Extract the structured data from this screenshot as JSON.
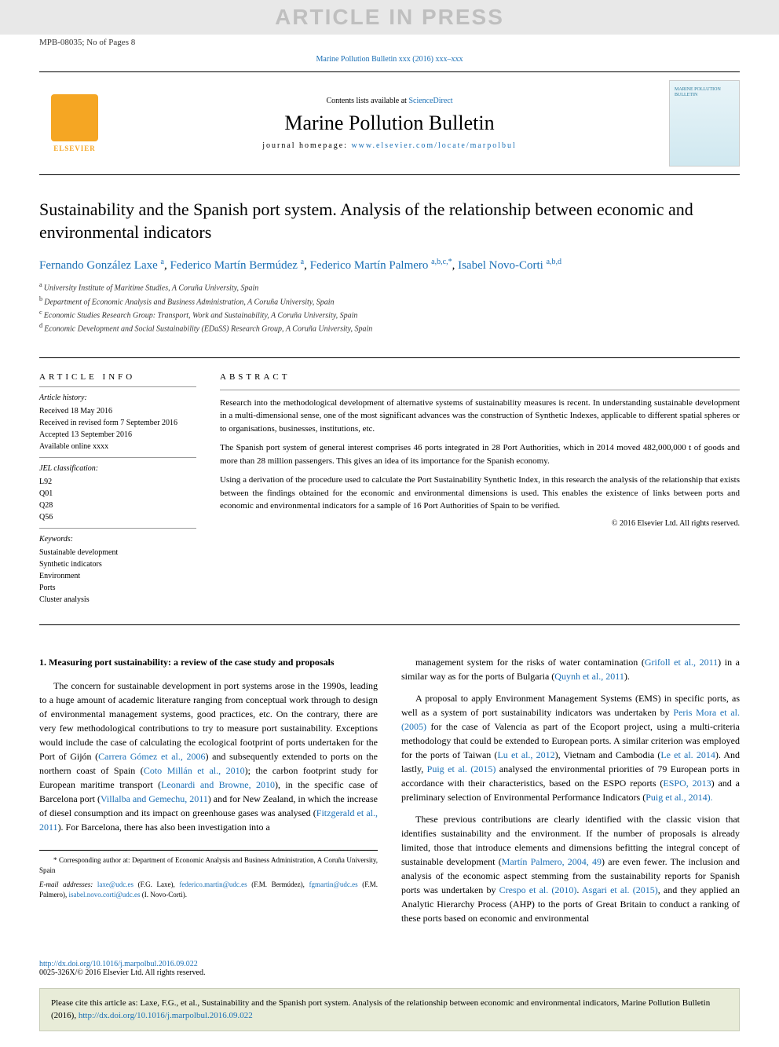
{
  "colors": {
    "link": "#1a6fb5",
    "watermark_bg": "#e8e8e8",
    "watermark_fg": "#bfbfbf",
    "elsevier_orange": "#f5a623",
    "citation_bg": "#e8ecd8",
    "citation_border": "#c8ccb8",
    "text": "#000000"
  },
  "typography": {
    "body_font": "Georgia, 'Times New Roman', serif",
    "title_fontsize": 22,
    "journal_title_fontsize": 26,
    "body_fontsize": 12,
    "abstract_fontsize": 11,
    "info_fontsize": 10
  },
  "watermark": "ARTICLE IN PRESS",
  "article_id": "MPB-08035; No of Pages 8",
  "journal_ref": "Marine Pollution Bulletin xxx (2016) xxx–xxx",
  "masthead": {
    "contents_line_prefix": "Contents lists available at ",
    "contents_link": "ScienceDirect",
    "journal_title": "Marine Pollution Bulletin",
    "homepage_prefix": "journal homepage: ",
    "homepage_url": "www.elsevier.com/locate/marpolbul",
    "publisher_label": "ELSEVIER",
    "cover_title": "MARINE POLLUTION BULLETIN"
  },
  "title": "Sustainability and the Spanish port system. Analysis of the relationship between economic and environmental indicators",
  "authors": [
    {
      "name": "Fernando González Laxe",
      "aff": "a"
    },
    {
      "name": "Federico Martín Bermúdez",
      "aff": "a"
    },
    {
      "name": "Federico Martín Palmero",
      "aff": "a,b,c,*"
    },
    {
      "name": "Isabel Novo-Corti",
      "aff": "a,b,d"
    }
  ],
  "affiliations": [
    {
      "key": "a",
      "text": "University Institute of Maritime Studies, A Coruña University, Spain"
    },
    {
      "key": "b",
      "text": "Department of Economic Analysis and Business Administration, A Coruña University, Spain"
    },
    {
      "key": "c",
      "text": "Economic Studies Research Group: Transport, Work and Sustainability, A Coruña University, Spain"
    },
    {
      "key": "d",
      "text": "Economic Development and Social Sustainability (EDaSS) Research Group, A Coruña University, Spain"
    }
  ],
  "article_info": {
    "heading": "article info",
    "history_label": "Article history:",
    "history": [
      "Received 18 May 2016",
      "Received in revised form 7 September 2016",
      "Accepted 13 September 2016",
      "Available online xxxx"
    ],
    "jel_label": "JEL classification:",
    "jel": [
      "L92",
      "Q01",
      "Q28",
      "Q56"
    ],
    "keywords_label": "Keywords:",
    "keywords": [
      "Sustainable development",
      "Synthetic indicators",
      "Environment",
      "Ports",
      "Cluster analysis"
    ]
  },
  "abstract": {
    "heading": "abstract",
    "paragraphs": [
      "Research into the methodological development of alternative systems of sustainability measures is recent. In understanding sustainable development in a multi-dimensional sense, one of the most significant advances was the construction of Synthetic Indexes, applicable to different spatial spheres or to organisations, businesses, institutions, etc.",
      "The Spanish port system of general interest comprises 46 ports integrated in 28 Port Authorities, which in 2014 moved 482,000,000 t of goods and more than 28 million passengers. This gives an idea of its importance for the Spanish economy.",
      "Using a derivation of the procedure used to calculate the Port Sustainability Synthetic Index, in this research the analysis of the relationship that exists between the findings obtained for the economic and environmental dimensions is used. This enables the existence of links between ports and economic and environmental indicators for a sample of 16 Port Authorities of Spain to be verified."
    ],
    "copyright": "© 2016 Elsevier Ltd. All rights reserved."
  },
  "body": {
    "section1_heading": "1. Measuring port sustainability: a review of the case study and proposals",
    "left_paragraphs": [
      {
        "text": "The concern for sustainable development in port systems arose in the 1990s, leading to a huge amount of academic literature ranging from conceptual work through to design of environmental management systems, good practices, etc. On the contrary, there are very few methodological contributions to try to measure port sustainability. Exceptions would include the case of calculating the ecological footprint of ports undertaken for the Port of Gijón (",
        "cite1": "Carrera Gómez et al., 2006",
        "t2": ") and subsequently extended to ports on the northern coast of Spain (",
        "cite2": "Coto Millán et al., 2010",
        "t3": "); the carbon footprint study for European maritime transport (",
        "cite3": "Leonardi and Browne, 2010",
        "t4": "), in the specific case of Barcelona port (",
        "cite4": "Villalba and Gemechu, 2011",
        "t5": ") and for New Zealand, in which the increase of diesel consumption and its impact on greenhouse gases was analysed (",
        "cite5": "Fitzgerald et al., 2011",
        "t6": "). For Barcelona, there has also been investigation into a"
      }
    ],
    "right_paragraphs": [
      {
        "text": "management system for the risks of water contamination (",
        "cite1": "Grifoll et al., 2011",
        "t2": ") in a similar way as for the ports of Bulgaria (",
        "cite2": "Quynh et al., 2011",
        "t3": ")."
      },
      {
        "text": "A proposal to apply Environment Management Systems (EMS) in specific ports, as well as a system of port sustainability indicators was undertaken by ",
        "cite1": "Peris Mora et al. (2005)",
        "t2": " for the case of Valencia as part of the Ecoport project, using a multi-criteria methodology that could be extended to European ports. A similar criterion was employed for the ports of Taiwan (",
        "cite2": "Lu et al., 2012",
        "t3": "), Vietnam and Cambodia (",
        "cite3": "Le et al. 2014",
        "t4": "). And lastly, ",
        "cite4": "Puig et al. (2015)",
        "t5": " analysed the environmental priorities of 79 European ports in accordance with their characteristics, based on the ESPO reports (",
        "cite5": "ESPO, 2013",
        "t6": ") and a preliminary selection of Environmental Performance Indicators (",
        "cite6": "Puig et al., 2014).",
        "t7": ""
      },
      {
        "text": "These previous contributions are clearly identified with the classic vision that identifies sustainability and the environment. If the number of proposals is already limited, those that introduce elements and dimensions befitting the integral concept of sustainable development (",
        "cite1": "Martín Palmero, 2004, 49",
        "t2": ") are even fewer. The inclusion and analysis of the economic aspect stemming from the sustainability reports for Spanish ports was undertaken by ",
        "cite2": "Crespo et al. (2010)",
        "t3": ". ",
        "cite3": "Asgari et al. (2015)",
        "t4": ", and they applied an Analytic Hierarchy Process (AHP) to the ports of Great Britain to conduct a ranking of these ports based on economic and environmental"
      }
    ]
  },
  "footnotes": {
    "corr": "* Corresponding author at: Department of Economic Analysis and Business Administration, A Coruña University, Spain",
    "emails_label": "E-mail addresses:",
    "emails": [
      {
        "addr": "laxe@udc.es",
        "who": "(F.G. Laxe)"
      },
      {
        "addr": "federico.martin@udc.es",
        "who": "(F.M. Bermúdez)"
      },
      {
        "addr": "fgmartin@udc.es",
        "who": "(F.M. Palmero)"
      },
      {
        "addr": "isabel.novo.corti@udc.es",
        "who": "(I. Novo-Corti)"
      }
    ]
  },
  "doi": {
    "url": "http://dx.doi.org/10.1016/j.marpolbul.2016.09.022",
    "issn": "0025-326X/© 2016 Elsevier Ltd. All rights reserved."
  },
  "citation_box": {
    "prefix": "Please cite this article as: Laxe, F.G., et al., Sustainability and the Spanish port system. Analysis of the relationship between economic and environmental indicators, Marine Pollution Bulletin (2016), ",
    "url": "http://dx.doi.org/10.1016/j.marpolbul.2016.09.022"
  }
}
